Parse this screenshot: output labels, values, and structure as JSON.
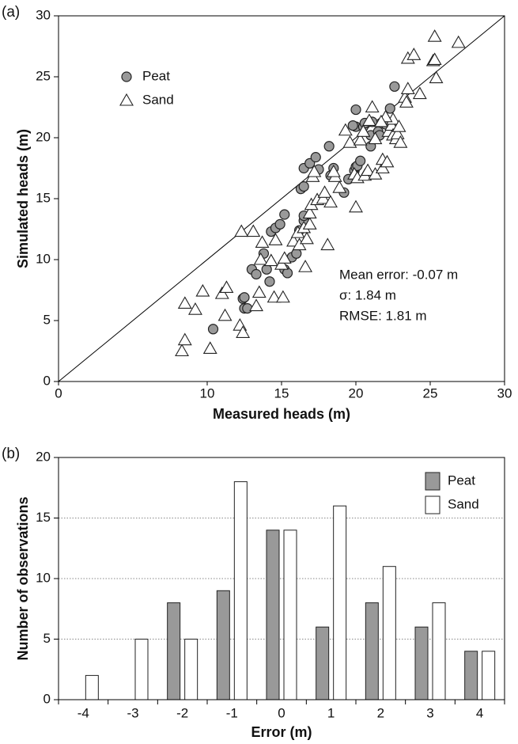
{
  "chart_data": [
    {
      "type": "scatter",
      "panel_label": "(a)",
      "xlabel": "Measured heads (m)",
      "ylabel": "Simulated heads (m)",
      "xlim": [
        0,
        30
      ],
      "ylim": [
        0,
        30
      ],
      "xticks": [
        0,
        10,
        15,
        20,
        25,
        30
      ],
      "yticks": [
        0,
        5,
        10,
        15,
        20,
        25,
        30
      ],
      "identity_line": true,
      "legend": "upper left",
      "annotations": [
        "Mean error: -0.07 m",
        "σ: 1.84 m",
        "RMSE: 1.81 m"
      ],
      "series": [
        {
          "name": "Peat",
          "marker": "circle",
          "color": "#999999",
          "x": [
            10.4,
            12.4,
            12.5,
            12.7,
            12.5,
            13,
            13.3,
            13.8,
            14,
            14.2,
            14.3,
            14.6,
            14.9,
            15.2,
            15.2,
            15.4,
            15.7,
            16,
            16.2,
            16.5,
            16.5,
            16.3,
            16.5,
            16.5,
            16.9,
            17.3,
            17.5,
            18.2,
            18.5,
            18.3,
            19.2,
            19.5,
            19.9,
            20,
            20.1,
            20,
            20,
            20.3,
            20.5,
            20.6,
            21,
            21,
            21.1,
            21.5,
            22,
            22.3,
            22.5,
            22.6,
            19.8,
            21.6
          ],
          "values": [
            4.3,
            6.8,
            6.0,
            6.0,
            6.9,
            9.2,
            8.8,
            10.5,
            9.2,
            8.2,
            12.3,
            12.6,
            12.9,
            13.7,
            9.2,
            8.9,
            10.2,
            10.5,
            12.4,
            13.2,
            13.6,
            15.8,
            16.0,
            17.5,
            17.9,
            18.4,
            17.4,
            19.3,
            17.5,
            16.9,
            15.5,
            16.6,
            17.3,
            17.6,
            17.7,
            20.9,
            22.3,
            18.1,
            20.9,
            21.2,
            19.3,
            20.2,
            21.3,
            20.5,
            21.1,
            22.4,
            20.8,
            24.2,
            21.0,
            20.2
          ]
        },
        {
          "name": "Sand",
          "marker": "triangle",
          "color": "#ffffff",
          "x": [
            8.3,
            8.5,
            8.5,
            9.2,
            9.7,
            10.2,
            11,
            11.3,
            11.2,
            12.2,
            12.4,
            12.3,
            13.1,
            13.3,
            13.5,
            13.6,
            13.7,
            14.3,
            14.5,
            14.6,
            15.1,
            15,
            15.2,
            15.8,
            16.1,
            16.2,
            16.5,
            16.6,
            16.7,
            16.9,
            16.9,
            17,
            17.1,
            17.2,
            17.4,
            17.8,
            17.9,
            18.1,
            18.3,
            18.6,
            18.5,
            18.9,
            19.3,
            19.6,
            19.9,
            20,
            20.1,
            20.3,
            20.5,
            20.6,
            20.8,
            20.9,
            21.1,
            21.3,
            21.3,
            21.8,
            21.8,
            22.1,
            22.2,
            22.4,
            22.5,
            22.5,
            22.7,
            22.8,
            23,
            22.9,
            23.3,
            23.4,
            23.5,
            23.5,
            23.9,
            24.3,
            25.2,
            25.3,
            25.4,
            25.3,
            26.9,
            22.0,
            21.7
          ],
          "values": [
            2.5,
            3.4,
            6.4,
            5.9,
            7.4,
            2.7,
            7.2,
            7.7,
            5.4,
            4.6,
            4.0,
            12.3,
            12.3,
            6.2,
            7.3,
            10,
            11.4,
            9.9,
            6.9,
            11.6,
            6.9,
            9.6,
            10.1,
            11.5,
            12.2,
            11.2,
            12.6,
            9.4,
            11.7,
            12.9,
            13.8,
            14.5,
            16.8,
            17.2,
            14.9,
            15.0,
            15.5,
            11.2,
            14.7,
            16.8,
            17.2,
            15.9,
            20.6,
            19.6,
            17.0,
            14.3,
            16.7,
            19.8,
            20.5,
            16.9,
            17.3,
            21.4,
            22.5,
            19.9,
            17.0,
            17.5,
            18.2,
            18.0,
            20.5,
            21.0,
            21.5,
            20.2,
            19.9,
            20.3,
            19.6,
            20.9,
            23.3,
            22.9,
            24.0,
            26.5,
            26.8,
            23.6,
            26.3,
            26.4,
            24.9,
            28.3,
            27.8,
            21.7,
            21.3
          ]
        }
      ]
    },
    {
      "type": "bar",
      "panel_label": "(b)",
      "xlabel": "Error (m)",
      "ylabel": "Number of observations",
      "categories": [
        "-4",
        "-3",
        "-2",
        "-1",
        "0",
        "1",
        "2",
        "3",
        "4"
      ],
      "ylim": [
        0,
        20
      ],
      "yticks": [
        0,
        5,
        10,
        15,
        20
      ],
      "grid": true,
      "legend": "upper right",
      "series": [
        {
          "name": "Peat",
          "color": "#999999",
          "values": [
            0,
            0,
            8,
            9,
            14,
            6,
            8,
            6,
            4
          ]
        },
        {
          "name": "Sand",
          "color": "#ffffff",
          "values": [
            2,
            5,
            5,
            18,
            14,
            16,
            11,
            8,
            4
          ]
        }
      ]
    }
  ]
}
